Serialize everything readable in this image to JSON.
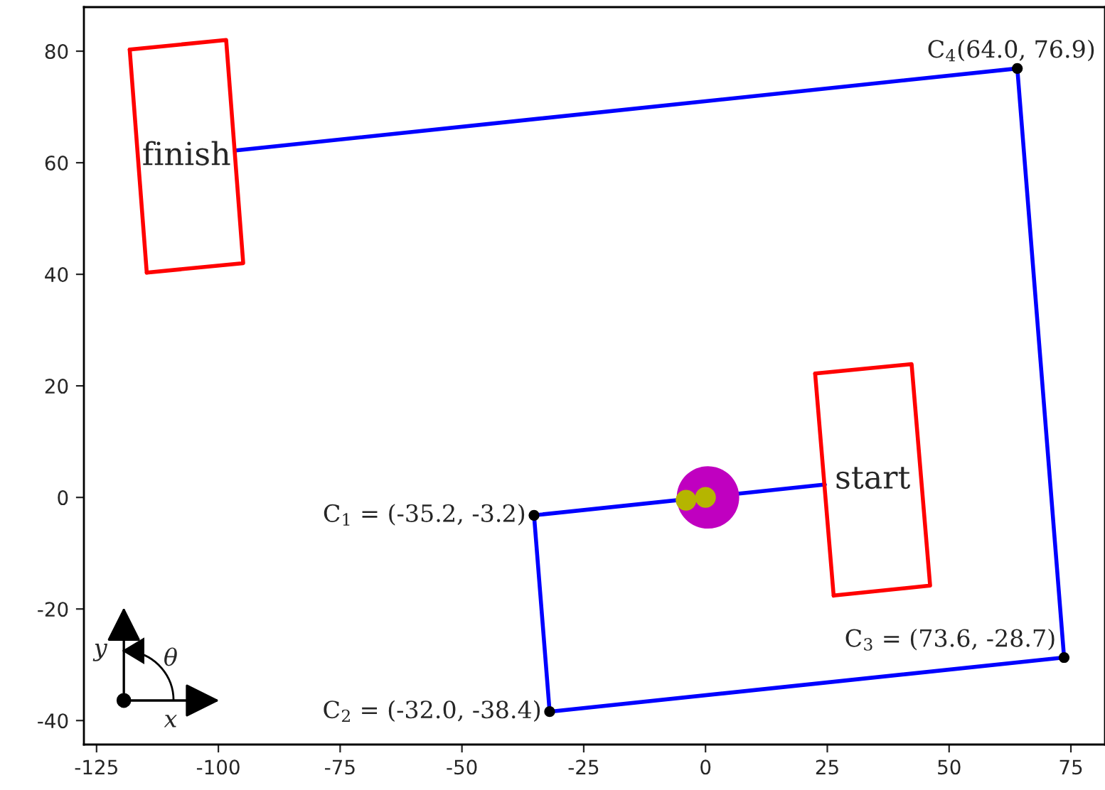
{
  "chart_data": {
    "type": "line",
    "xlim": [
      -127.6,
      82
    ],
    "ylim": [
      -44.3,
      87.9
    ],
    "xticks": [
      -125,
      -100,
      -75,
      -50,
      -25,
      0,
      25,
      50,
      75
    ],
    "yticks": [
      -40,
      -20,
      0,
      20,
      40,
      60,
      80
    ],
    "grid": false,
    "legend": false,
    "series": [
      {
        "color": "#0000ff",
        "marker": "none",
        "line_style": "solid",
        "x": [
          -96.4,
          64.0,
          73.6,
          -32.0,
          -35.2,
          24.5
        ],
        "values": [
          62.2,
          76.9,
          -28.7,
          -38.4,
          -3.2,
          2.3
        ]
      },
      {
        "color": "#ff0000",
        "marker": "none",
        "line_style": "solid",
        "x": [
          -118.2,
          -98.4,
          -94.9,
          -114.7
        ],
        "values": [
          80.3,
          82.0,
          42.0,
          40.3
        ]
      },
      {
        "color": "#ff0000",
        "marker": "none",
        "line_style": "solid",
        "x": [
          22.5,
          42.3,
          46.1,
          26.3
        ],
        "values": [
          22.2,
          23.9,
          -15.8,
          -17.6
        ]
      },
      {
        "color": "#ff0000",
        "marker": "none",
        "line_style": "solid",
        "x": [
          -114.7,
          -118.2
        ],
        "values": [
          40.3,
          80.3
        ]
      },
      {
        "color": "#ff0000",
        "marker": "none",
        "line_style": "solid",
        "x": [
          26.3,
          22.5
        ],
        "values": [
          -17.6,
          22.2
        ]
      },
      {
        "type": "scatter",
        "color": "#000000",
        "marker": "circle",
        "x": [
          -35.2,
          -32.0,
          73.6,
          64.0
        ],
        "values": [
          -3.2,
          -38.4,
          -28.7,
          76.9
        ]
      },
      {
        "type": "scatter",
        "color": "#c000c0",
        "marker": "circle",
        "x": [
          0.5
        ],
        "values": [
          0.0
        ]
      },
      {
        "type": "scatter",
        "color": "#b5b500",
        "marker": "circle",
        "x": [
          -4.0,
          0.0
        ],
        "values": [
          -0.5,
          0.0
        ]
      }
    ],
    "annotations": [
      {
        "text": "C$_{1}$ = (-35.2, -3.2)",
        "x": -35.2,
        "y": -3.2
      },
      {
        "text": "C$_{2}$ = (-32.0, -38.4)",
        "x": -32.0,
        "y": -38.4
      },
      {
        "text": "C$_{3}$ = (73.6, -28.7)",
        "x": 73.6,
        "y": -28.7
      },
      {
        "text": "C$_{4}$(64.0, 76.9)",
        "x": 64.0,
        "y": 76.9
      },
      "finish",
      "start",
      "y",
      "θ",
      "x"
    ]
  }
}
